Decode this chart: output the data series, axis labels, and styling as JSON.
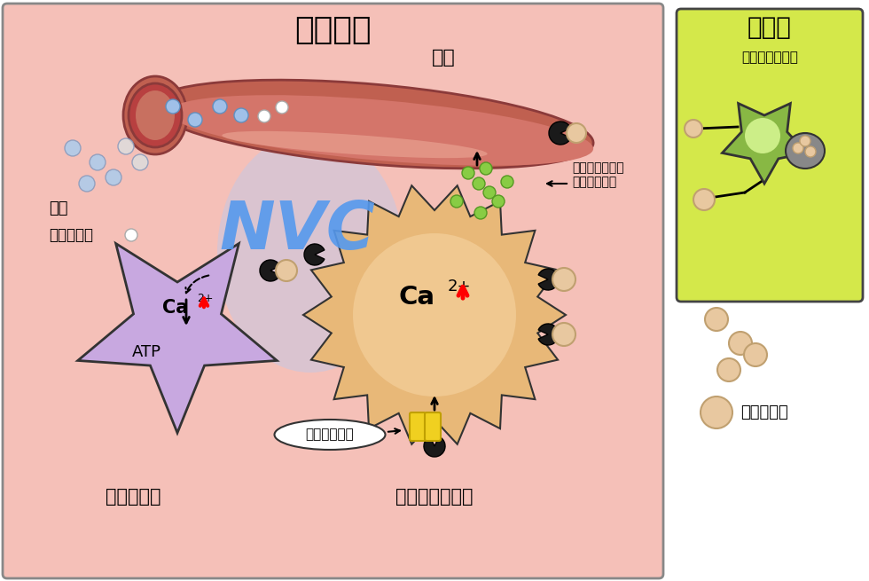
{
  "title_main": "大脳皮質",
  "title_side": "縫線核",
  "subtitle_side": "セロトニン神経",
  "nvc_text": "NVC",
  "blood_vessel_label": "血管",
  "vasoactive_label": "血管作動性因子\n（開口放出）",
  "oxygen_label": "酸素",
  "glucose_label": "グルコース",
  "atp_label": "ATP",
  "glutamate_label": "グルタミン酸",
  "neuron_label": "興奮性神経",
  "astro_label": "アストロサイト",
  "serotonin_label": "セロトニン",
  "main_box_color": "#f5c0b8",
  "side_box_color": "#d4e84a",
  "vessel_color": "#c06050",
  "vessel_inner": "#d4756a",
  "vessel_dark": "#b84040",
  "neuron_color": "#c8a8e0",
  "astro_outer": "#e8b878",
  "astro_inner": "#f0c890",
  "green_star_color": "#88b844",
  "serotonin_ball_color": "#e8c8a0",
  "receptor_color": "#1a1a1a",
  "nvc_color": "#5599ee",
  "blue_dot_color": "#a0c0e8",
  "green_dot_color": "#88cc44",
  "yellow_receptor_color": "#f0d020"
}
